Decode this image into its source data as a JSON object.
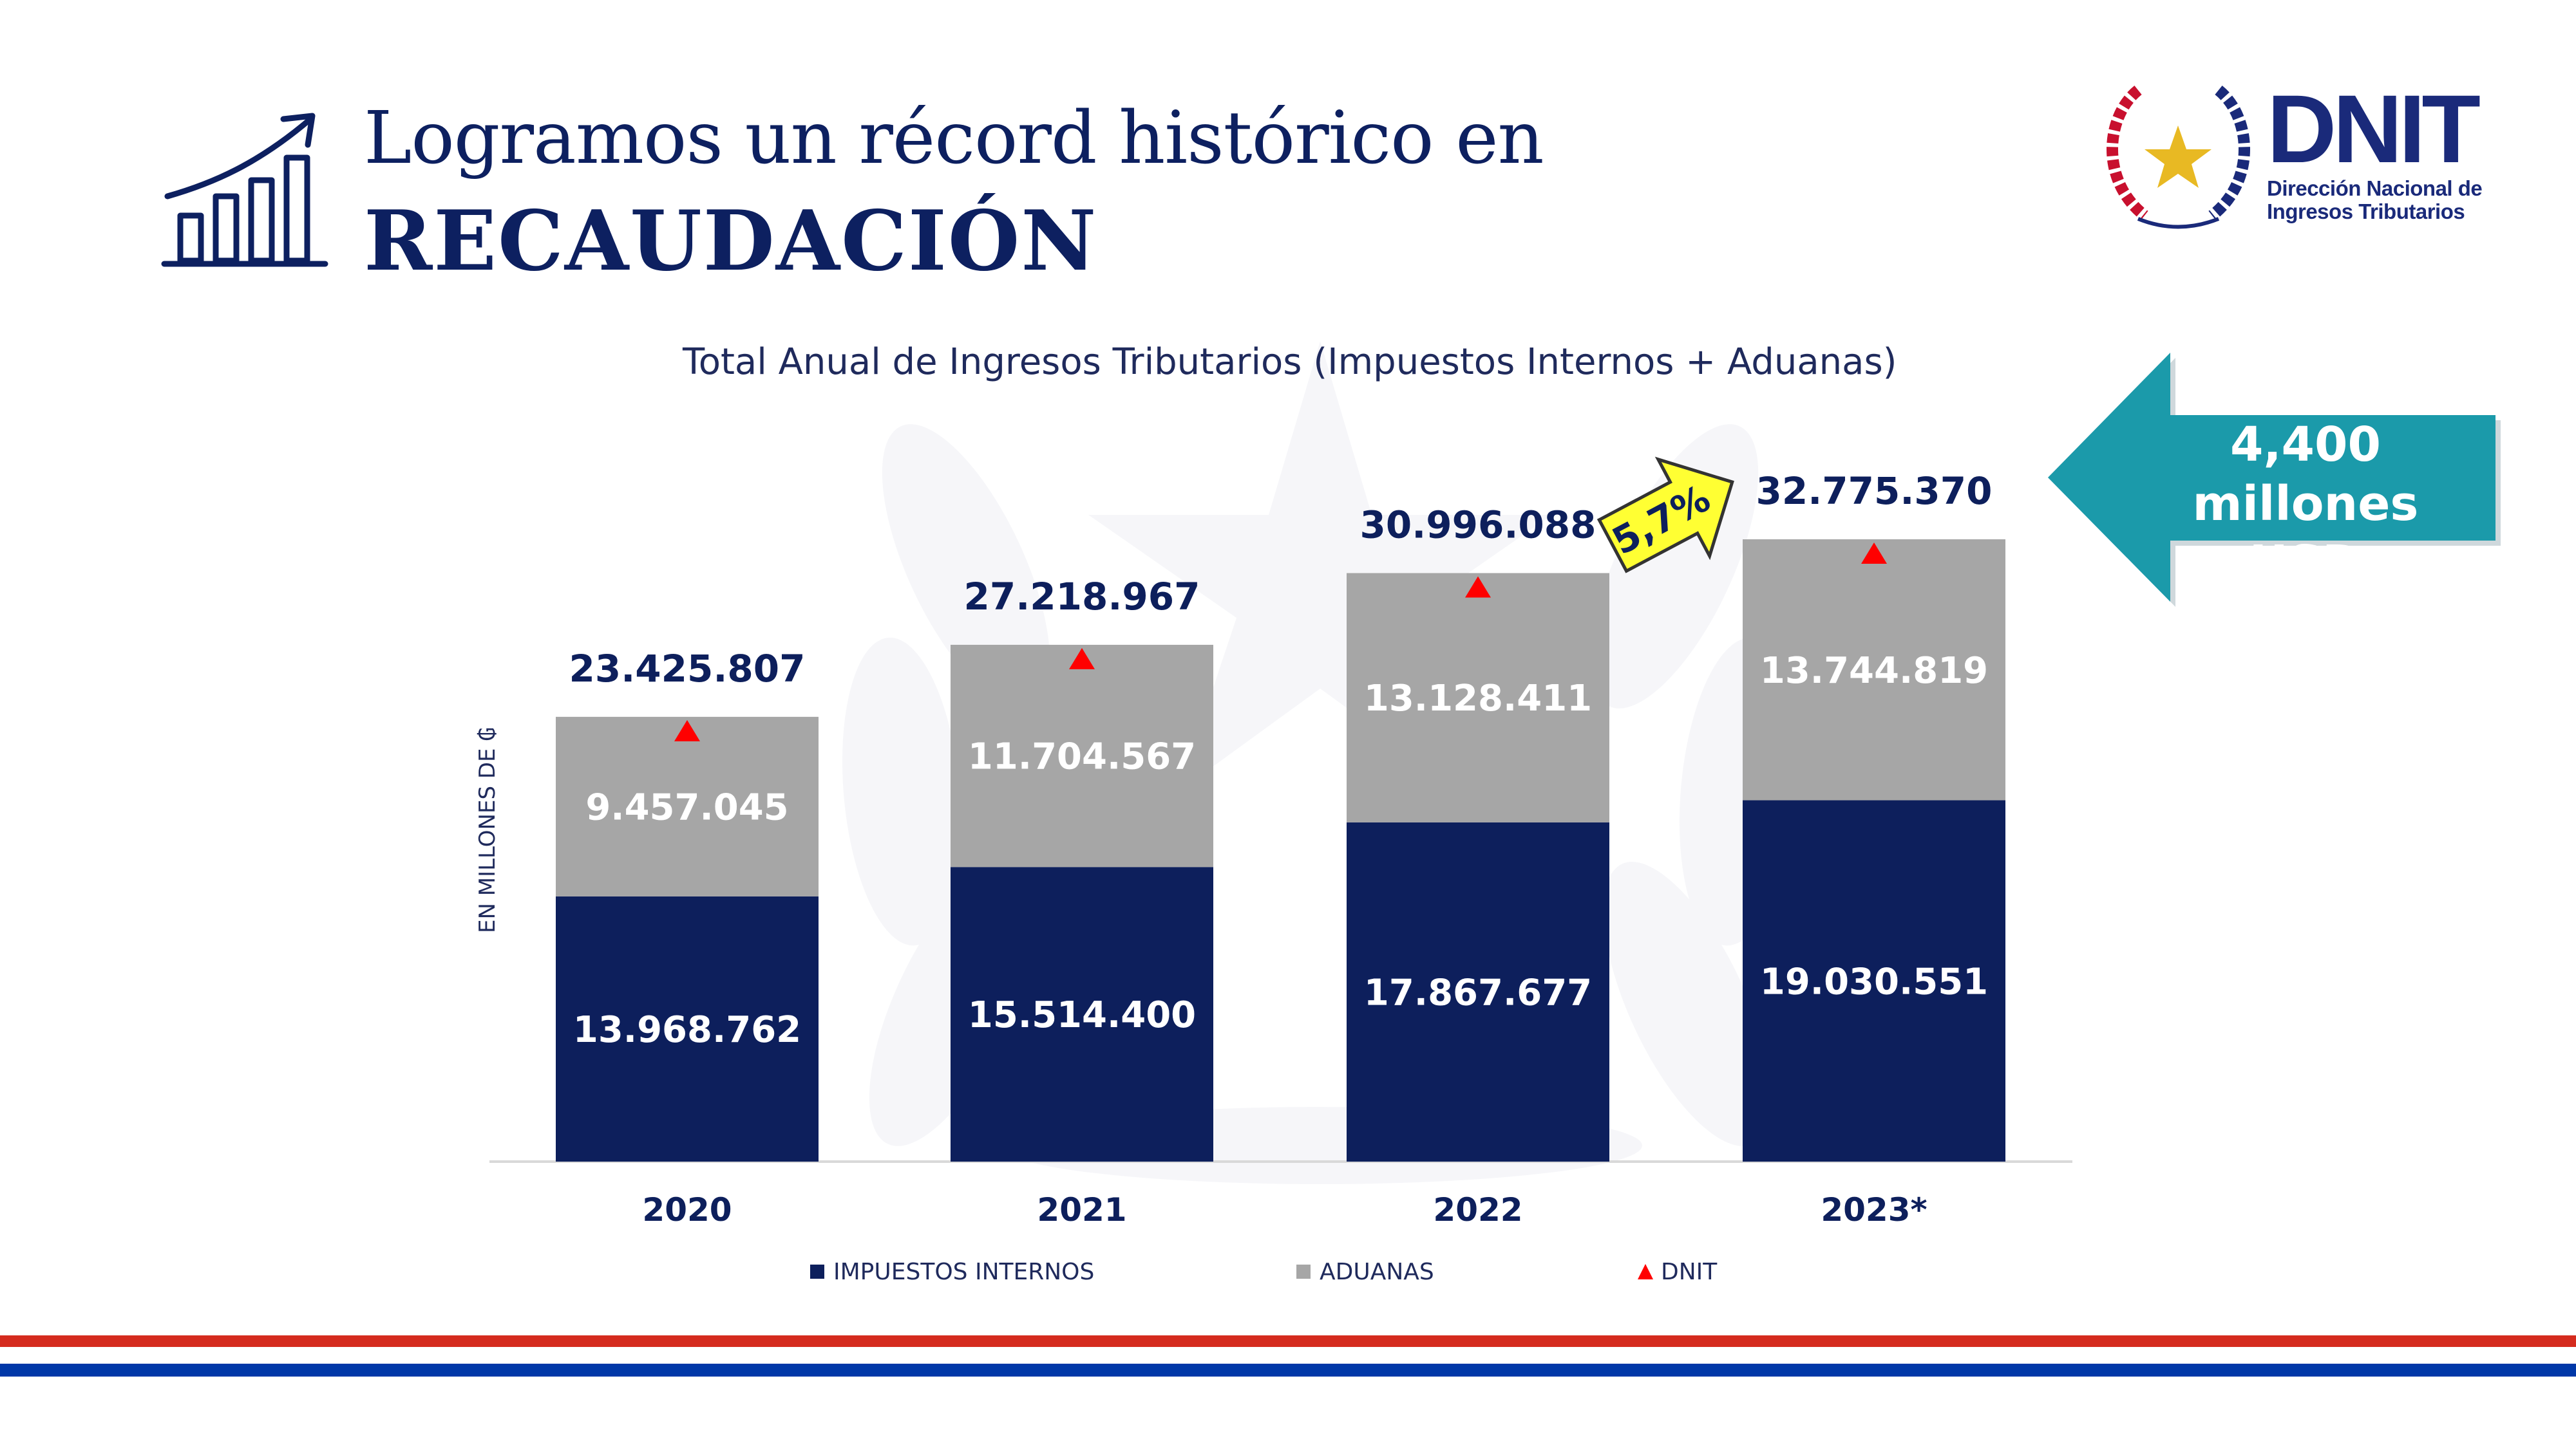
{
  "header": {
    "title_line1": "Logramos un récord histórico en",
    "title_line2": "RECAUDACIÓN"
  },
  "logo": {
    "name": "DNIT",
    "line1": "Dirección Nacional de",
    "line2": "Ingresos Tributarios"
  },
  "callout": {
    "line1": "4,400 millones",
    "line2": "USD"
  },
  "growth_badge": "5,7%",
  "colors": {
    "navy": "#0d1f5c",
    "gray": "#a6a6a6",
    "dnit_marker": "#ff0000",
    "callout": "#1b9aaa",
    "badge": "#ffff33",
    "flag_red": "#d52b1e",
    "flag_blue": "#0038a8"
  },
  "icons": [
    "growth-chart-icon",
    "paraguay-seal-icon",
    "arrow-right-icon",
    "arrow-left-icon"
  ],
  "chart_data": {
    "type": "bar",
    "stacked": true,
    "title": "Total Anual de Ingresos Tributarios (Impuestos Internos + Aduanas)",
    "ylabel": "EN MILLONES DE ₲",
    "categories": [
      "2020",
      "2021",
      "2022",
      "2023*"
    ],
    "series": [
      {
        "name": "IMPUESTOS INTERNOS",
        "color": "#0d1f5c",
        "values": [
          13968762,
          15514400,
          17867677,
          19030551
        ],
        "labels": [
          "13.968.762",
          "15.514.400",
          "17.867.677",
          "19.030.551"
        ]
      },
      {
        "name": "ADUANAS",
        "color": "#a6a6a6",
        "values": [
          9457045,
          11704567,
          13128411,
          13744819
        ],
        "labels": [
          "9.457.045",
          "11.704.567",
          "13.128.411",
          "13.744.819"
        ]
      }
    ],
    "totals": {
      "name": "DNIT",
      "values": [
        23425807,
        27218967,
        30996088,
        32775370
      ],
      "labels": [
        "23.425.807",
        "27.218.967",
        "30.996.088",
        "32.775.370"
      ]
    },
    "ylim": [
      0,
      32775370
    ],
    "grid": false,
    "legend": "bottom"
  }
}
